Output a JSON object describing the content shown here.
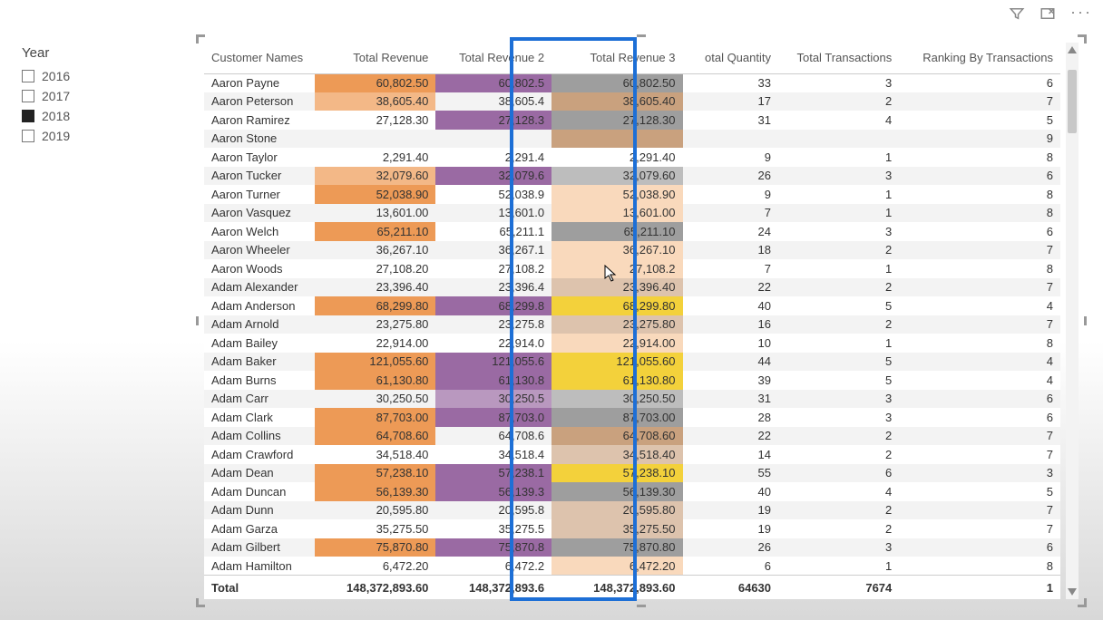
{
  "actions": {
    "filter": "filter-icon",
    "focus": "focus-icon",
    "more": "more-icon"
  },
  "slicer": {
    "title": "Year",
    "items": [
      {
        "label": "2016",
        "checked": false
      },
      {
        "label": "2017",
        "checked": false
      },
      {
        "label": "2018",
        "checked": true
      },
      {
        "label": "2019",
        "checked": false
      }
    ]
  },
  "table": {
    "columns": [
      {
        "label": "Customer Names",
        "align": "left"
      },
      {
        "label": "Total Revenue",
        "align": "right"
      },
      {
        "label": "Total Revenue 2",
        "align": "right"
      },
      {
        "label": "Total Revenue 3",
        "align": "right"
      },
      {
        "label": "otal Quantity",
        "align": "right"
      },
      {
        "label": "Total Transactions",
        "align": "right"
      },
      {
        "label": "Ranking By Transactions",
        "align": "right"
      }
    ],
    "highlight_column_index": 3,
    "highlight_border_color": "#1d6fd6",
    "colors": {
      "orange_strong": "#ed9a56",
      "orange_mid": "#f3b887",
      "orange_light": "#f9d9bc",
      "purple_strong": "#9a6aa3",
      "purple_mid": "#b998bf",
      "yellow": "#f3d13b",
      "gray": "#9e9e9e",
      "gray_light": "#bdbdbd",
      "tan": "#c9a17e",
      "tan_light": "#ddc3ad"
    },
    "rows": [
      {
        "name": "Aaron Payne",
        "rev": "60,802.50",
        "rev2": "60,802.5",
        "rev3": "60,802.50",
        "qty": "33",
        "tx": "3",
        "rank": "6",
        "c1": "orange_strong",
        "c2": "purple_strong",
        "c3": "gray"
      },
      {
        "name": "Aaron Peterson",
        "rev": "38,605.40",
        "rev2": "38,605.4",
        "rev3": "38,605.40",
        "qty": "17",
        "tx": "2",
        "rank": "7",
        "c1": "orange_mid",
        "c2": "",
        "c3": "tan"
      },
      {
        "name": "Aaron Ramirez",
        "rev": "27,128.30",
        "rev2": "27,128.3",
        "rev3": "27,128.30",
        "qty": "31",
        "tx": "4",
        "rank": "5",
        "c1": "",
        "c2": "purple_strong",
        "c3": "gray"
      },
      {
        "name": "Aaron Stone",
        "rev": "",
        "rev2": "",
        "rev3": "",
        "qty": "",
        "tx": "",
        "rank": "9",
        "c1": "",
        "c2": "",
        "c3": "tan"
      },
      {
        "name": "Aaron Taylor",
        "rev": "2,291.40",
        "rev2": "2,291.4",
        "rev3": "2,291.40",
        "qty": "9",
        "tx": "1",
        "rank": "8",
        "c1": "",
        "c2": "",
        "c3": ""
      },
      {
        "name": "Aaron Tucker",
        "rev": "32,079.60",
        "rev2": "32,079.6",
        "rev3": "32,079.60",
        "qty": "26",
        "tx": "3",
        "rank": "6",
        "c1": "orange_mid",
        "c2": "purple_strong",
        "c3": "gray_light"
      },
      {
        "name": "Aaron Turner",
        "rev": "52,038.90",
        "rev2": "52,038.9",
        "rev3": "52,038.90",
        "qty": "9",
        "tx": "1",
        "rank": "8",
        "c1": "orange_strong",
        "c2": "",
        "c3": "orange_light"
      },
      {
        "name": "Aaron Vasquez",
        "rev": "13,601.00",
        "rev2": "13,601.0",
        "rev3": "13,601.00",
        "qty": "7",
        "tx": "1",
        "rank": "8",
        "c1": "",
        "c2": "",
        "c3": "orange_light"
      },
      {
        "name": "Aaron Welch",
        "rev": "65,211.10",
        "rev2": "65,211.1",
        "rev3": "65,211.10",
        "qty": "24",
        "tx": "3",
        "rank": "6",
        "c1": "orange_strong",
        "c2": "",
        "c3": "gray"
      },
      {
        "name": "Aaron Wheeler",
        "rev": "36,267.10",
        "rev2": "36,267.1",
        "rev3": "36,267.10",
        "qty": "18",
        "tx": "2",
        "rank": "7",
        "c1": "",
        "c2": "",
        "c3": "orange_light"
      },
      {
        "name": "Aaron Woods",
        "rev": "27,108.20",
        "rev2": "27,108.2",
        "rev3": "27,108.2",
        "qty": "7",
        "tx": "1",
        "rank": "8",
        "c1": "",
        "c2": "",
        "c3": "orange_light"
      },
      {
        "name": "Adam Alexander",
        "rev": "23,396.40",
        "rev2": "23,396.4",
        "rev3": "23,396.40",
        "qty": "22",
        "tx": "2",
        "rank": "7",
        "c1": "",
        "c2": "",
        "c3": "tan_light"
      },
      {
        "name": "Adam Anderson",
        "rev": "68,299.80",
        "rev2": "68,299.8",
        "rev3": "68,299.80",
        "qty": "40",
        "tx": "5",
        "rank": "4",
        "c1": "orange_strong",
        "c2": "purple_strong",
        "c3": "yellow"
      },
      {
        "name": "Adam Arnold",
        "rev": "23,275.80",
        "rev2": "23,275.8",
        "rev3": "23,275.80",
        "qty": "16",
        "tx": "2",
        "rank": "7",
        "c1": "",
        "c2": "",
        "c3": "tan_light"
      },
      {
        "name": "Adam Bailey",
        "rev": "22,914.00",
        "rev2": "22,914.0",
        "rev3": "22,914.00",
        "qty": "10",
        "tx": "1",
        "rank": "8",
        "c1": "",
        "c2": "",
        "c3": "orange_light"
      },
      {
        "name": "Adam Baker",
        "rev": "121,055.60",
        "rev2": "121,055.6",
        "rev3": "121,055.60",
        "qty": "44",
        "tx": "5",
        "rank": "4",
        "c1": "orange_strong",
        "c2": "purple_strong",
        "c3": "yellow"
      },
      {
        "name": "Adam Burns",
        "rev": "61,130.80",
        "rev2": "61,130.8",
        "rev3": "61,130.80",
        "qty": "39",
        "tx": "5",
        "rank": "4",
        "c1": "orange_strong",
        "c2": "purple_strong",
        "c3": "yellow"
      },
      {
        "name": "Adam Carr",
        "rev": "30,250.50",
        "rev2": "30,250.5",
        "rev3": "30,250.50",
        "qty": "31",
        "tx": "3",
        "rank": "6",
        "c1": "",
        "c2": "purple_mid",
        "c3": "gray_light"
      },
      {
        "name": "Adam Clark",
        "rev": "87,703.00",
        "rev2": "87,703.0",
        "rev3": "87,703.00",
        "qty": "28",
        "tx": "3",
        "rank": "6",
        "c1": "orange_strong",
        "c2": "purple_strong",
        "c3": "gray"
      },
      {
        "name": "Adam Collins",
        "rev": "64,708.60",
        "rev2": "64,708.6",
        "rev3": "64,708.60",
        "qty": "22",
        "tx": "2",
        "rank": "7",
        "c1": "orange_strong",
        "c2": "",
        "c3": "tan"
      },
      {
        "name": "Adam Crawford",
        "rev": "34,518.40",
        "rev2": "34,518.4",
        "rev3": "34,518.40",
        "qty": "14",
        "tx": "2",
        "rank": "7",
        "c1": "",
        "c2": "",
        "c3": "tan_light"
      },
      {
        "name": "Adam Dean",
        "rev": "57,238.10",
        "rev2": "57,238.1",
        "rev3": "57,238.10",
        "qty": "55",
        "tx": "6",
        "rank": "3",
        "c1": "orange_strong",
        "c2": "purple_strong",
        "c3": "yellow"
      },
      {
        "name": "Adam Duncan",
        "rev": "56,139.30",
        "rev2": "56,139.3",
        "rev3": "56,139.30",
        "qty": "40",
        "tx": "4",
        "rank": "5",
        "c1": "orange_strong",
        "c2": "purple_strong",
        "c3": "gray"
      },
      {
        "name": "Adam Dunn",
        "rev": "20,595.80",
        "rev2": "20,595.8",
        "rev3": "20,595.80",
        "qty": "19",
        "tx": "2",
        "rank": "7",
        "c1": "",
        "c2": "",
        "c3": "tan_light"
      },
      {
        "name": "Adam Garza",
        "rev": "35,275.50",
        "rev2": "35,275.5",
        "rev3": "35,275.50",
        "qty": "19",
        "tx": "2",
        "rank": "7",
        "c1": "",
        "c2": "",
        "c3": "tan_light"
      },
      {
        "name": "Adam Gilbert",
        "rev": "75,870.80",
        "rev2": "75,870.8",
        "rev3": "75,870.80",
        "qty": "26",
        "tx": "3",
        "rank": "6",
        "c1": "orange_strong",
        "c2": "purple_strong",
        "c3": "gray"
      },
      {
        "name": "Adam Hamilton",
        "rev": "6,472.20",
        "rev2": "6,472.2",
        "rev3": "6,472.20",
        "qty": "6",
        "tx": "1",
        "rank": "8",
        "c1": "",
        "c2": "",
        "c3": "orange_light"
      }
    ],
    "total": {
      "label": "Total",
      "rev": "148,372,893.60",
      "rev2": "148,372,893.6",
      "rev3": "148,372,893.60",
      "qty": "64630",
      "tx": "7674",
      "rank": "1"
    }
  }
}
